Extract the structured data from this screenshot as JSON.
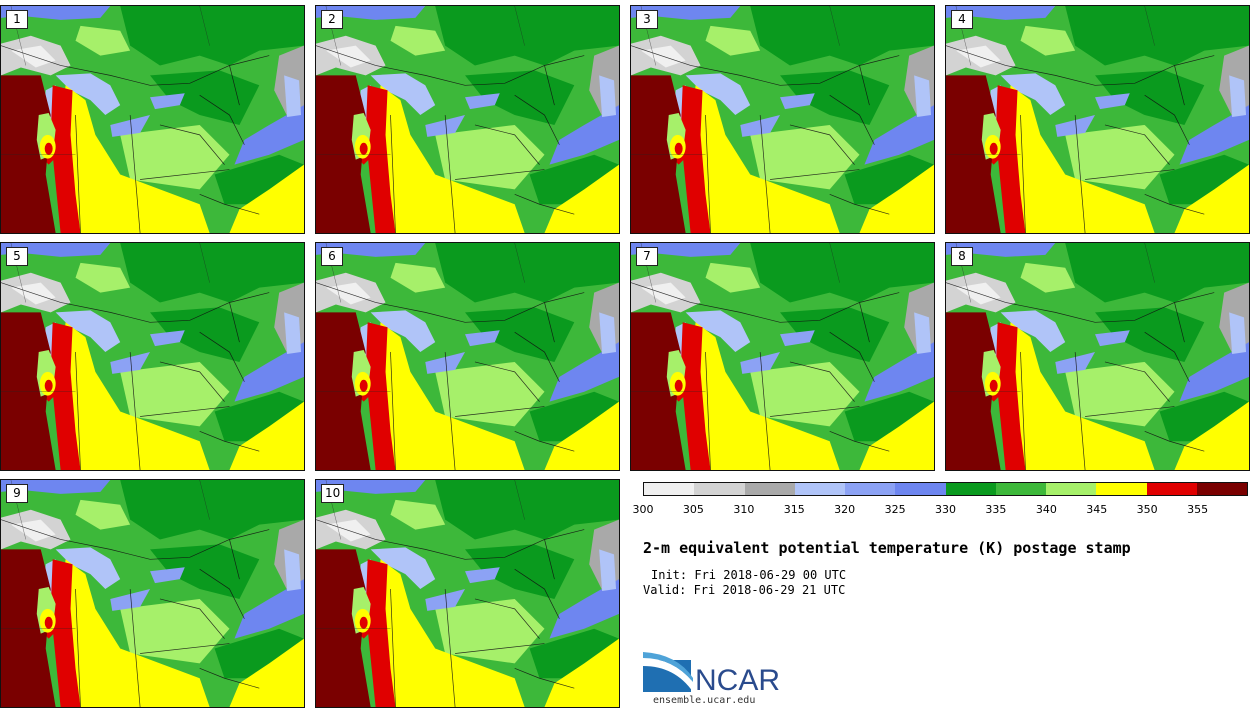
{
  "panels": [
    {
      "label": "1"
    },
    {
      "label": "2"
    },
    {
      "label": "3"
    },
    {
      "label": "4"
    },
    {
      "label": "5"
    },
    {
      "label": "6"
    },
    {
      "label": "7"
    },
    {
      "label": "8"
    },
    {
      "label": "9"
    },
    {
      "label": "10"
    }
  ],
  "colorbar": {
    "colors": [
      "#f0f0f0",
      "#d3d3d3",
      "#a9a9a9",
      "#b0c4f8",
      "#8ca2f4",
      "#6e86f0",
      "#0a9a1e",
      "#3db83a",
      "#a6f06a",
      "#ffff00",
      "#e00000",
      "#7a0000"
    ],
    "ticks": [
      "300",
      "305",
      "310",
      "315",
      "320",
      "325",
      "330",
      "335",
      "340",
      "345",
      "350",
      "355"
    ]
  },
  "title": "2-m equivalent potential temperature (K) postage stamp",
  "init_text": "Init: Fri 2018-06-29 00 UTC",
  "valid_text": "Valid: Fri 2018-06-29 21 UTC",
  "logo": {
    "name": "NCAR",
    "url": "ensemble.ucar.edu"
  }
}
